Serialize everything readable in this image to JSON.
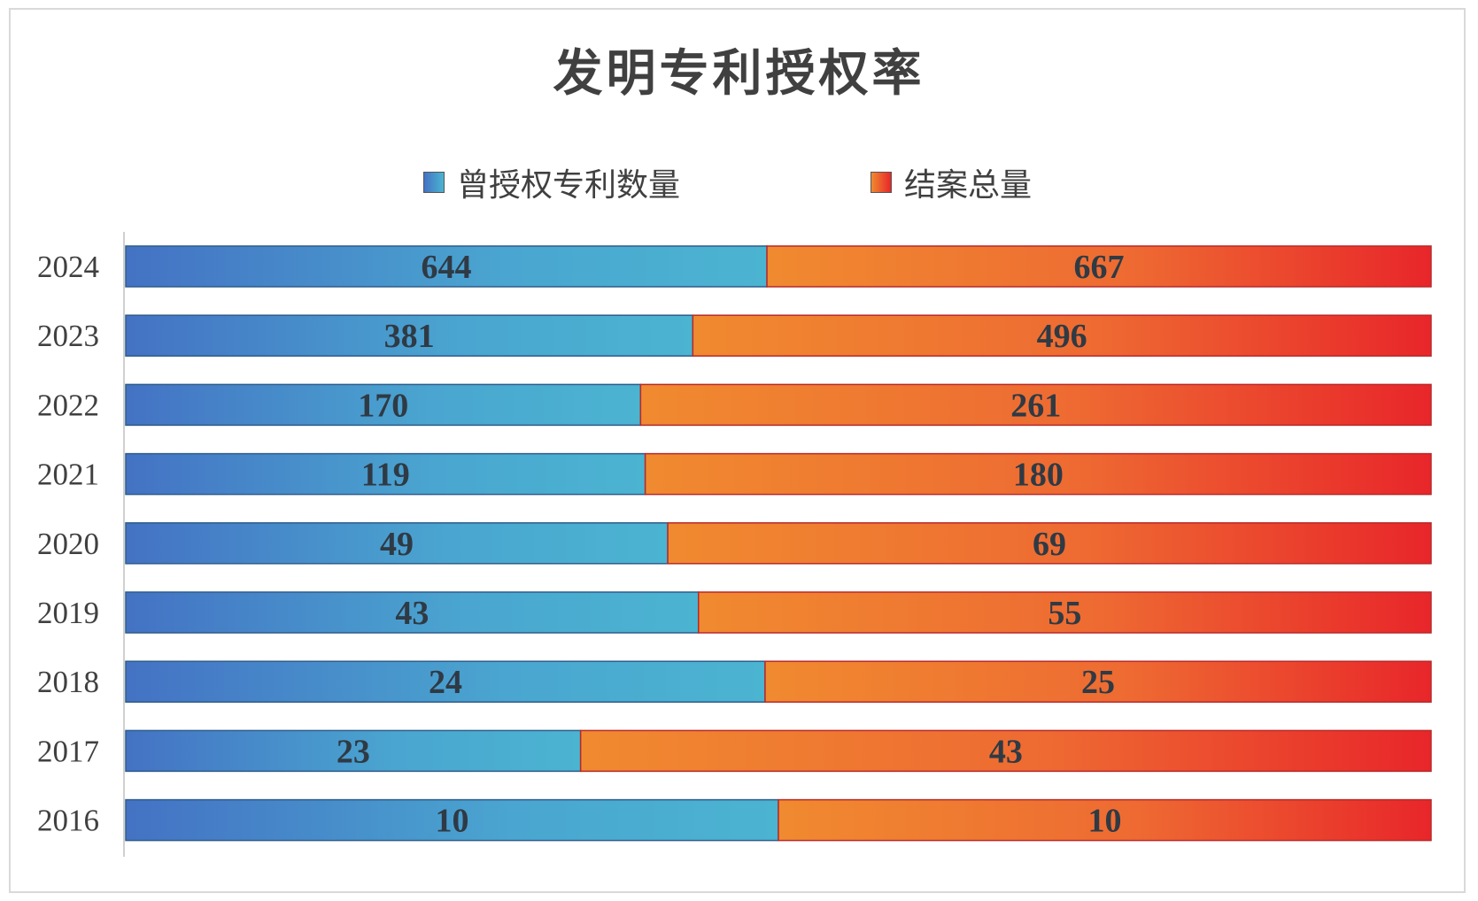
{
  "chart_data": {
    "type": "bar",
    "orientation": "horizontal",
    "stacking": "percent",
    "title": "发明专利授权率",
    "categories": [
      "2024",
      "2023",
      "2022",
      "2021",
      "2020",
      "2019",
      "2018",
      "2017",
      "2016"
    ],
    "series": [
      {
        "name": "曾授权专利数量",
        "values": [
          644,
          381,
          170,
          119,
          49,
          43,
          24,
          23,
          10
        ],
        "color": "#4bb4d1"
      },
      {
        "name": "结案总量",
        "values": [
          667,
          496,
          261,
          180,
          69,
          55,
          25,
          43,
          10
        ],
        "color": "#e8262a"
      }
    ],
    "legend_position": "top",
    "grid": false
  }
}
